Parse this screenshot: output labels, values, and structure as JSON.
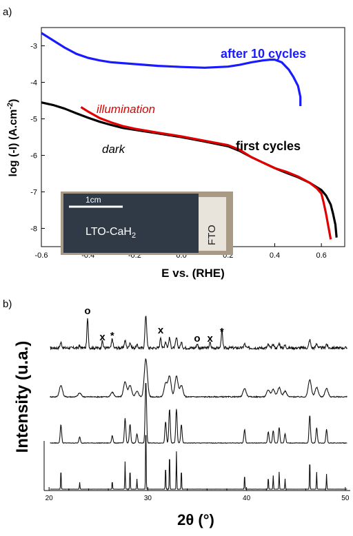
{
  "chart_data": [
    {
      "panel_label": "a)",
      "type": "line",
      "xlabel": "E vs. (RHE)",
      "ylabel": "log (-I)  (A.cm-2)",
      "ylabel_parts": [
        "log (-I)  (A.cm",
        "-2",
        ")"
      ],
      "xlim": [
        -0.6,
        0.7
      ],
      "ylim": [
        -8.5,
        -2.5
      ],
      "xticks": [
        -0.6,
        -0.4,
        -0.2,
        0.0,
        0.2,
        0.4,
        0.6
      ],
      "xtick_labels": [
        "-0.6",
        "-0.4",
        "-0.2",
        "0.0",
        "0.2",
        "0.4",
        "0.6"
      ],
      "yticks": [
        -8,
        -7,
        -6,
        -5,
        -4,
        -3
      ],
      "ytick_labels": [
        "-8",
        "-7",
        "-6",
        "-5",
        "-4",
        "-3"
      ],
      "series": [
        {
          "label": "after 10 cycles",
          "color": "#1a1aff",
          "x": [
            -0.6,
            -0.55,
            -0.5,
            -0.45,
            -0.4,
            -0.35,
            -0.3,
            -0.2,
            -0.1,
            0.0,
            0.1,
            0.2,
            0.25,
            0.3,
            0.35,
            0.38,
            0.4,
            0.43,
            0.46,
            0.48,
            0.5,
            0.51,
            0.51
          ],
          "y": [
            -2.65,
            -2.85,
            -3.05,
            -3.22,
            -3.33,
            -3.4,
            -3.45,
            -3.5,
            -3.55,
            -3.58,
            -3.6,
            -3.57,
            -3.52,
            -3.45,
            -3.4,
            -3.38,
            -3.38,
            -3.45,
            -3.65,
            -3.85,
            -4.1,
            -4.4,
            -4.65
          ]
        },
        {
          "label": "dark",
          "color": "#000000",
          "x": [
            -0.6,
            -0.55,
            -0.5,
            -0.45,
            -0.4,
            -0.35,
            -0.3,
            -0.25,
            -0.2,
            -0.1,
            0.0,
            0.1,
            0.2,
            0.25,
            0.3,
            0.35,
            0.4,
            0.45,
            0.5,
            0.55,
            0.6,
            0.62,
            0.64,
            0.65,
            0.66,
            0.665
          ],
          "y": [
            -4.55,
            -4.62,
            -4.72,
            -4.85,
            -4.97,
            -5.08,
            -5.17,
            -5.25,
            -5.3,
            -5.4,
            -5.5,
            -5.62,
            -5.75,
            -5.88,
            -6.05,
            -6.2,
            -6.35,
            -6.48,
            -6.6,
            -6.75,
            -6.95,
            -7.1,
            -7.35,
            -7.6,
            -7.9,
            -8.25
          ]
        },
        {
          "label": "illumination",
          "color": "#e00000",
          "x": [
            -0.43,
            -0.4,
            -0.35,
            -0.3,
            -0.25,
            -0.2,
            -0.1,
            0.0,
            0.1,
            0.2,
            0.25,
            0.3,
            0.35,
            0.4,
            0.45,
            0.5,
            0.55,
            0.58,
            0.6,
            0.61,
            0.62,
            0.63,
            0.64
          ],
          "y": [
            -4.68,
            -4.8,
            -4.98,
            -5.1,
            -5.2,
            -5.27,
            -5.38,
            -5.48,
            -5.6,
            -5.72,
            -5.85,
            -6.05,
            -6.2,
            -6.35,
            -6.45,
            -6.58,
            -6.75,
            -6.9,
            -7.05,
            -7.3,
            -7.6,
            -7.95,
            -8.3
          ]
        }
      ],
      "annotations": [
        {
          "text": "after 10 cycles",
          "color": "#1a1aff",
          "style": "bold"
        },
        {
          "text": "illumination",
          "color": "#e00000",
          "style": "italic"
        },
        {
          "text": "dark",
          "color": "#000000",
          "style": "italic"
        },
        {
          "text": "first cycles",
          "color": "#000000",
          "style": "bold"
        }
      ],
      "inset_photo": {
        "scale_bar_label": "1cm",
        "sample_label_main": "LTO-CaH",
        "sample_label_sub": "2",
        "electrode_label": "FTO"
      }
    },
    {
      "panel_label": "b)",
      "type": "line",
      "xlabel": "2θ (°)",
      "ylabel": "Intensity  (u.a.)",
      "xlim": [
        19.5,
        50.5
      ],
      "xticks": [
        20,
        30,
        40,
        50
      ],
      "xtick_labels": [
        "20",
        "30",
        "40",
        "50"
      ],
      "description": "Four stacked XRD patterns, top (after cycling, experimental) to bottom (reference stick pattern)",
      "peaks": [
        21.2,
        23.1,
        26.4,
        27.7,
        28.2,
        28.9,
        29.8,
        31.8,
        32.2,
        32.9,
        33.4,
        39.8,
        42.2,
        42.7,
        43.3,
        43.9,
        46.4,
        47.1,
        48.1
      ],
      "top_trace_extra_peaks": [
        {
          "x": 23.9,
          "marker": "o"
        },
        {
          "x": 25.4,
          "marker": "x"
        },
        {
          "x": 26.4,
          "marker": "*"
        },
        {
          "x": 31.3,
          "marker": "x"
        },
        {
          "x": 35.0,
          "marker": "o"
        },
        {
          "x": 36.3,
          "marker": "x"
        },
        {
          "x": 37.5,
          "marker": "*"
        }
      ],
      "markers": [
        "o",
        "x",
        "*",
        "x",
        "o",
        "x",
        "*"
      ]
    }
  ]
}
